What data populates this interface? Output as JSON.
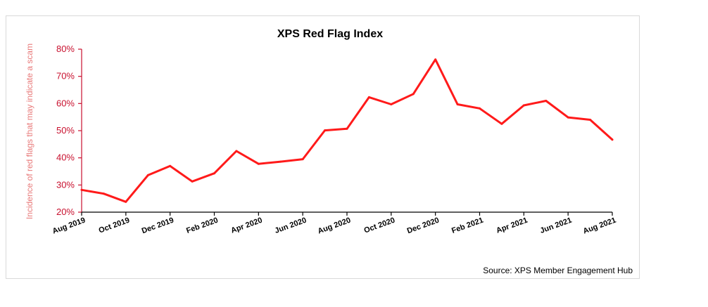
{
  "chart_data": {
    "type": "line",
    "title": "XPS Red Flag Index",
    "ylabel": "Incidence of red flags that may indicate a scam",
    "xlabel": "",
    "ylim": [
      0.2,
      0.8
    ],
    "yticks": [
      0.2,
      0.3,
      0.4,
      0.5,
      0.6,
      0.7,
      0.8
    ],
    "ytick_labels": [
      "20%",
      "30%",
      "40%",
      "50%",
      "60%",
      "70%",
      "80%"
    ],
    "x": [
      "Aug 2019",
      "Sep 2019",
      "Oct 2019",
      "Nov 2019",
      "Dec 2019",
      "Jan 2020",
      "Feb 2020",
      "Mar 2020",
      "Apr 2020",
      "May 2020",
      "Jun 2020",
      "Jul 2020",
      "Aug 2020",
      "Sep 2020",
      "Oct 2020",
      "Nov 2020",
      "Dec 2020",
      "Jan 2021",
      "Feb 2021",
      "Mar 2021",
      "Apr 2021",
      "May 2021",
      "Jun 2021",
      "Jul 2021",
      "Aug 2021"
    ],
    "xtick_labels": [
      "Aug 2019",
      "Oct 2019",
      "Dec 2019",
      "Feb 2020",
      "Apr 2020",
      "Jun 2020",
      "Aug 2020",
      "Oct 2020",
      "Dec 2020",
      "Feb 2021",
      "Apr 2021",
      "Jun 2021",
      "Aug 2021"
    ],
    "series": [
      {
        "values": [
          0.282,
          0.268,
          0.238,
          0.336,
          0.37,
          0.313,
          0.343,
          0.425,
          0.378,
          0.386,
          0.395,
          0.501,
          0.507,
          0.623,
          0.597,
          0.635,
          0.762,
          0.597,
          0.582,
          0.525,
          0.593,
          0.61,
          0.549,
          0.54,
          0.467
        ]
      }
    ],
    "grid": false,
    "legend": "none",
    "source": "Source: XPS Member Engagement Hub",
    "colors": {
      "line": "#ff1a1a",
      "axis": "#c8102e",
      "ylabel": "#e87a7a"
    }
  }
}
